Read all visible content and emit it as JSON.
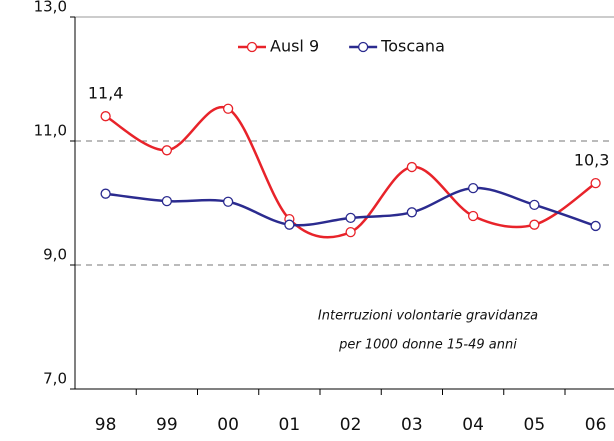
{
  "chart_data": {
    "type": "line",
    "categories": [
      "98",
      "99",
      "00",
      "01",
      "02",
      "03",
      "04",
      "05",
      "06"
    ],
    "series": [
      {
        "name": "Ausl 9",
        "color": "#e8232a",
        "values": [
          11.4,
          10.85,
          11.52,
          9.74,
          9.53,
          10.58,
          9.79,
          9.65,
          10.32
        ],
        "value_labels": [
          "11,4",
          null,
          null,
          null,
          null,
          null,
          null,
          null,
          "10,3"
        ]
      },
      {
        "name": "Toscana",
        "color": "#2b2b8f",
        "values": [
          10.15,
          10.03,
          10.02,
          9.65,
          9.76,
          9.85,
          10.24,
          9.97,
          9.63
        ]
      }
    ],
    "ylim": [
      7,
      13
    ],
    "yticks": [
      {
        "value": 7,
        "label": "7,0"
      },
      {
        "value": 9,
        "label": "9,0"
      },
      {
        "value": 11,
        "label": "11,0"
      },
      {
        "value": 13,
        "label": "13,0"
      }
    ],
    "grid": true,
    "legend": "top",
    "annotations": [
      "Interruzioni volontarie gravidanza",
      "per 1000 donne 15-49 anni"
    ]
  }
}
